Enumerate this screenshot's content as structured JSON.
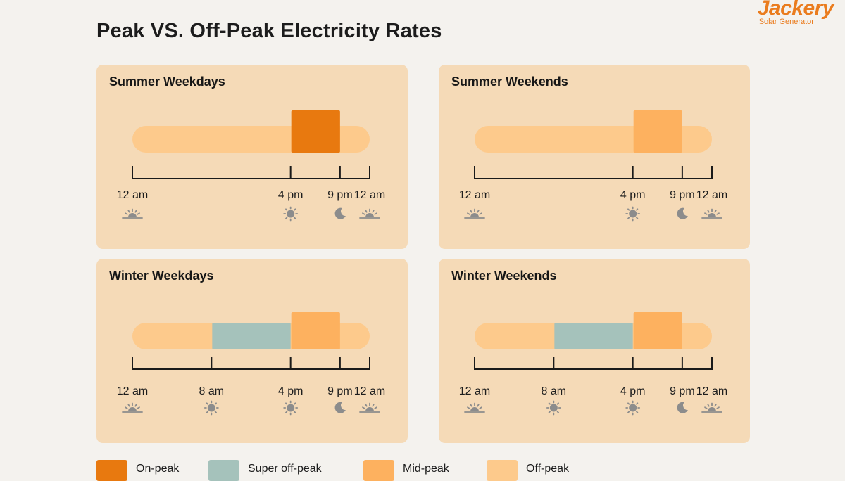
{
  "title": "Peak VS. Off-Peak Electricity Rates",
  "brand": {
    "name": "Jackery",
    "subtitle": "Solar Generator"
  },
  "colors": {
    "on_peak": "#e8790f",
    "super_off_peak": "#a5c2bb",
    "mid_peak": "#fdb15f",
    "off_peak": "#fdca8c",
    "panel": "#f5dab7",
    "icon": "#8c8c8c"
  },
  "legend": [
    {
      "label": "On-peak",
      "key": "on_peak"
    },
    {
      "label": "Super off-peak",
      "key": "super_off_peak"
    },
    {
      "label": "Mid-peak",
      "key": "mid_peak"
    },
    {
      "label": "Off-peak",
      "key": "off_peak"
    }
  ],
  "panels": [
    {
      "id": "summer-weekdays",
      "title": "Summer Weekdays",
      "ticks": [
        {
          "label": "12 am",
          "hour": 0,
          "icon": "sunrise"
        },
        {
          "label": "4 pm",
          "hour": 16,
          "icon": "sun"
        },
        {
          "label": "9 pm",
          "hour": 21,
          "icon": "moon"
        },
        {
          "label": "12 am",
          "hour": 24,
          "icon": "sunrise"
        }
      ],
      "segments": [
        {
          "start": 0,
          "end": 16,
          "rate": "off_peak"
        },
        {
          "start": 16,
          "end": 21,
          "rate": "on_peak"
        },
        {
          "start": 21,
          "end": 24,
          "rate": "off_peak"
        }
      ]
    },
    {
      "id": "summer-weekends",
      "title": "Summer Weekends",
      "ticks": [
        {
          "label": "12 am",
          "hour": 0,
          "icon": "sunrise"
        },
        {
          "label": "4 pm",
          "hour": 16,
          "icon": "sun"
        },
        {
          "label": "9 pm",
          "hour": 21,
          "icon": "moon"
        },
        {
          "label": "12 am",
          "hour": 24,
          "icon": "sunrise"
        }
      ],
      "segments": [
        {
          "start": 0,
          "end": 16,
          "rate": "off_peak"
        },
        {
          "start": 16,
          "end": 21,
          "rate": "mid_peak"
        },
        {
          "start": 21,
          "end": 24,
          "rate": "off_peak"
        }
      ]
    },
    {
      "id": "winter-weekdays",
      "title": "Winter Weekdays",
      "ticks": [
        {
          "label": "12 am",
          "hour": 0,
          "icon": "sunrise"
        },
        {
          "label": "8 am",
          "hour": 8,
          "icon": "sun"
        },
        {
          "label": "4 pm",
          "hour": 16,
          "icon": "sun"
        },
        {
          "label": "9 pm",
          "hour": 21,
          "icon": "moon"
        },
        {
          "label": "12 am",
          "hour": 24,
          "icon": "sunrise"
        }
      ],
      "segments": [
        {
          "start": 0,
          "end": 8,
          "rate": "off_peak"
        },
        {
          "start": 8,
          "end": 16,
          "rate": "super_off_peak"
        },
        {
          "start": 16,
          "end": 21,
          "rate": "mid_peak"
        },
        {
          "start": 21,
          "end": 24,
          "rate": "off_peak"
        }
      ]
    },
    {
      "id": "winter-weekends",
      "title": "Winter Weekends",
      "ticks": [
        {
          "label": "12 am",
          "hour": 0,
          "icon": "sunrise"
        },
        {
          "label": "8 am",
          "hour": 8,
          "icon": "sun"
        },
        {
          "label": "4 pm",
          "hour": 16,
          "icon": "sun"
        },
        {
          "label": "9 pm",
          "hour": 21,
          "icon": "moon"
        },
        {
          "label": "12 am",
          "hour": 24,
          "icon": "sunrise"
        }
      ],
      "segments": [
        {
          "start": 0,
          "end": 8,
          "rate": "off_peak"
        },
        {
          "start": 8,
          "end": 16,
          "rate": "super_off_peak"
        },
        {
          "start": 16,
          "end": 21,
          "rate": "mid_peak"
        },
        {
          "start": 21,
          "end": 24,
          "rate": "off_peak"
        }
      ]
    }
  ]
}
